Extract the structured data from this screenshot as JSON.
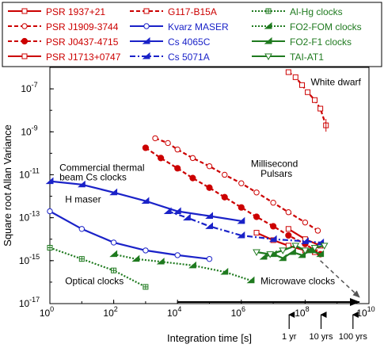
{
  "chart_data": {
    "type": "line",
    "title": "",
    "xlabel": "Integration time [s]",
    "ylabel": "Square root Allan Variance",
    "xscale": "log",
    "yscale": "log",
    "xlim": [
      1,
      10000000000
    ],
    "ylim": [
      1e-17,
      1e-06
    ],
    "x_ticks": [
      {
        "value": 1,
        "label": "10",
        "exp": "0"
      },
      {
        "value": 100,
        "label": "10",
        "exp": "2"
      },
      {
        "value": 10000,
        "label": "10",
        "exp": "4"
      },
      {
        "value": 1000000,
        "label": "10",
        "exp": "6"
      },
      {
        "value": 100000000,
        "label": "10",
        "exp": "8"
      },
      {
        "value": 10000000000,
        "label": "10",
        "exp": "10"
      }
    ],
    "y_ticks": [
      {
        "value": 1e-17,
        "label": "10",
        "exp": "-17"
      },
      {
        "value": 1e-15,
        "label": "10",
        "exp": "-15"
      },
      {
        "value": 1e-13,
        "label": "10",
        "exp": "-13"
      },
      {
        "value": 1e-11,
        "label": "10",
        "exp": "-11"
      },
      {
        "value": 1e-09,
        "label": "10",
        "exp": "-9"
      },
      {
        "value": 1e-07,
        "label": "10",
        "exp": "-7"
      }
    ],
    "grid": false,
    "legend_position": "top",
    "series": [
      {
        "name": "PSR 1937+21",
        "color": "#cc0000",
        "line": "solid",
        "marker": "square-open",
        "x": [
          3000000,
          10000000,
          30000000,
          100000000,
          200000000
        ],
        "y": [
          2e-14,
          9e-15,
          5e-15,
          3e-15,
          2.5e-15
        ]
      },
      {
        "name": "PSR J1909-3744",
        "color": "#cc0000",
        "line": "dashed",
        "marker": "circle-open",
        "x": [
          2000,
          5000,
          10000,
          30000,
          100000,
          300000,
          1000000,
          3000000,
          10000000,
          30000000,
          100000000,
          250000000
        ],
        "y": [
          5e-10,
          3e-10,
          1.5e-10,
          6e-11,
          2.5e-11,
          1e-11,
          4e-12,
          1.5e-12,
          5e-13,
          1.8e-13,
          6e-14,
          2.5e-14
        ]
      },
      {
        "name": "PSR J0437-4715",
        "color": "#cc0000",
        "line": "dashed",
        "marker": "circle-filled",
        "x": [
          1000,
          3000,
          10000,
          30000,
          100000,
          300000,
          1000000,
          3000000,
          10000000,
          30000000,
          100000000,
          300000000
        ],
        "y": [
          1.8e-10,
          6e-11,
          2e-11,
          7e-12,
          2.5e-12,
          9e-13,
          3e-13,
          1.1e-13,
          4e-14,
          1.5e-14,
          6e-15,
          2e-15
        ]
      },
      {
        "name": "PSR J1713+0747",
        "color": "#cc0000",
        "line": "solid",
        "marker": "square-open",
        "x": [
          30000000,
          100000000,
          300000000
        ],
        "y": [
          3e-14,
          1e-14,
          5e-15
        ]
      },
      {
        "name": "G117-B15A",
        "color": "#cc0000",
        "line": "dashed",
        "marker": "square-open",
        "x": [
          30000000,
          50000000,
          80000000,
          120000000,
          200000000,
          300000000,
          450000000
        ],
        "y": [
          6e-07,
          3.5e-07,
          1.5e-07,
          7e-08,
          3e-08,
          1.2e-08,
          2e-09
        ]
      },
      {
        "name": "Kvarz MASER",
        "color": "#1a22c8",
        "line": "solid",
        "marker": "circle-open",
        "x": [
          1,
          10,
          100,
          1000,
          10000,
          100000
        ],
        "y": [
          2e-13,
          3e-14,
          7e-15,
          3e-15,
          1.8e-15,
          1.2e-15
        ]
      },
      {
        "name": "Cs 4065C",
        "color": "#1a22c8",
        "line": "solid",
        "marker": "tri-filled",
        "x": [
          1,
          10,
          100,
          1000,
          10000,
          100000,
          1000000
        ],
        "y": [
          5e-12,
          3.5e-12,
          1.5e-12,
          6e-13,
          2e-13,
          1.2e-13,
          7e-14
        ]
      },
      {
        "name": "Cs 5071A",
        "color": "#1a22c8",
        "line": "dashdot",
        "marker": "tri-filled",
        "x": [
          5000,
          20000,
          100000,
          1000000,
          10000000,
          100000000,
          300000000
        ],
        "y": [
          2e-13,
          1e-13,
          4e-14,
          1.5e-14,
          1e-14,
          8e-15,
          7e-15
        ]
      },
      {
        "name": "Al-Hg clocks",
        "color": "#1f7a1f",
        "line": "dotted",
        "marker": "square-plus",
        "x": [
          1,
          10,
          100,
          1000
        ],
        "y": [
          4e-15,
          1.2e-15,
          3.5e-16,
          6e-17
        ]
      },
      {
        "name": "FO2-FOM clocks",
        "color": "#1f7a1f",
        "line": "dotted",
        "marker": "tri-filled",
        "x": [
          100,
          500,
          3000,
          30000,
          300000,
          2000000
        ],
        "y": [
          2e-15,
          1.2e-15,
          9e-16,
          6e-16,
          3e-16,
          1.2e-16
        ]
      },
      {
        "name": "FO2-F1 clocks",
        "color": "#1f7a1f",
        "line": "solid",
        "marker": "tri-filled",
        "x": [
          5000000,
          10000000,
          20000000,
          40000000,
          80000000,
          150000000,
          300000000
        ],
        "y": [
          1.5e-15,
          2e-15,
          1.3e-15,
          2.5e-15,
          1.8e-15,
          3e-15,
          2e-15
        ]
      },
      {
        "name": "TAI-AT1",
        "color": "#1f7a1f",
        "line": "solid",
        "marker": "tri-down-open",
        "x": [
          3000000,
          8000000,
          20000000,
          50000000,
          100000000,
          200000000,
          400000000
        ],
        "y": [
          2.5e-15,
          2e-15,
          3e-15,
          5e-15,
          3e-15,
          4e-15,
          5e-15
        ]
      }
    ],
    "annotations": [
      {
        "text": "White dwarf",
        "x": 150000000,
        "y": 1.5e-07
      },
      {
        "text": "Millisecond",
        "x": 2000000,
        "y": 2.3e-11
      },
      {
        "text": "Pulsars",
        "x": 4000000,
        "y": 8e-12
      },
      {
        "text": "Commercial thermal",
        "x": 2,
        "y": 1.5e-11
      },
      {
        "text": "beam Cs clocks",
        "x": 2,
        "y": 5.5e-12
      },
      {
        "text": "H maser",
        "x": 3,
        "y": 5e-13
      },
      {
        "text": "Optical clocks",
        "x": 3,
        "y": 8e-17
      },
      {
        "text": "Microwave clocks",
        "x": 4000000,
        "y": 8e-17
      }
    ],
    "trend_arrow": {
      "from": [
        300000000,
        1e-15
      ],
      "to": [
        5000000000,
        2e-17
      ],
      "style": "dashed"
    },
    "horizontal_arrow": {
      "from": [
        10000,
        1e-17
      ],
      "to": [
        5000000000,
        1e-17
      ]
    },
    "time_markers": [
      {
        "text": "1 yr",
        "x": 31536000
      },
      {
        "text": "10 yrs",
        "x": 315360000
      },
      {
        "text": "100 yrs",
        "x": 3153600000
      }
    ]
  }
}
